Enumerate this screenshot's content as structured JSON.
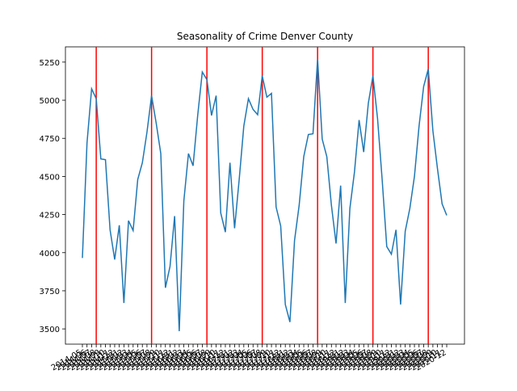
{
  "chart_data": {
    "type": "line",
    "title": "Seasonality of Crime Denver County",
    "categories": [
      "2014-05",
      "2014-06",
      "2014-07",
      "2014-08",
      "2014-09",
      "2014-10",
      "2014-11",
      "2014-12",
      "2015-01",
      "2015-02",
      "2015-03",
      "2015-04",
      "2015-05",
      "2015-06",
      "2015-07",
      "2015-08",
      "2015-09",
      "2015-10",
      "2015-11",
      "2015-12",
      "2016-01",
      "2016-02",
      "2016-03",
      "2016-04",
      "2016-05",
      "2016-06",
      "2016-07",
      "2016-08",
      "2016-09",
      "2016-10",
      "2016-11",
      "2016-12",
      "2017-01",
      "2017-02",
      "2017-03",
      "2017-04",
      "2017-05",
      "2017-06",
      "2017-07",
      "2017-08",
      "2017-09",
      "2017-10",
      "2017-11",
      "2017-12",
      "2018-01",
      "2018-02",
      "2018-03",
      "2018-04",
      "2018-05",
      "2018-06",
      "2018-07",
      "2018-08",
      "2018-09",
      "2018-10",
      "2018-11",
      "2018-12",
      "2019-01",
      "2019-02",
      "2019-03",
      "2019-04",
      "2019-05",
      "2019-06",
      "2019-07",
      "2019-08",
      "2019-09",
      "2019-10",
      "2019-11",
      "2019-12",
      "2020-01",
      "2020-02",
      "2020-03",
      "2020-04",
      "2020-05",
      "2020-06",
      "2020-07",
      "2020-08",
      "2020-09",
      "2020-10",
      "2020-11",
      "2020-12"
    ],
    "series": [
      {
        "color": "#1f77b4",
        "values": [
          3965,
          4720,
          5075,
          5010,
          4615,
          4610,
          4150,
          3955,
          4180,
          3670,
          4210,
          4145,
          4480,
          4590,
          4790,
          5030,
          4850,
          4650,
          3770,
          3910,
          4240,
          3485,
          4340,
          4650,
          4570,
          4900,
          5185,
          5135,
          4900,
          5030,
          4260,
          4135,
          4590,
          4160,
          4480,
          4830,
          5010,
          4940,
          4905,
          5160,
          5020,
          5045,
          4300,
          4175,
          3660,
          3545,
          4080,
          4310,
          4630,
          4775,
          4780,
          5270,
          4745,
          4630,
          4310,
          4060,
          4440,
          3670,
          4290,
          4530,
          4870,
          4660,
          4980,
          5160,
          4880,
          4480,
          4040,
          3990,
          4150,
          3660,
          4140,
          4290,
          4500,
          4830,
          5090,
          5205,
          4800,
          4550,
          4320,
          4245
        ]
      }
    ],
    "vlines": [
      "2014-08",
      "2015-08",
      "2016-08",
      "2017-08",
      "2018-08",
      "2019-08",
      "2020-08"
    ],
    "vline_color": "red",
    "ylim": [
      3400,
      5350
    ],
    "yticks": [
      3500,
      3750,
      4000,
      4250,
      4500,
      4750,
      5000,
      5250
    ]
  }
}
